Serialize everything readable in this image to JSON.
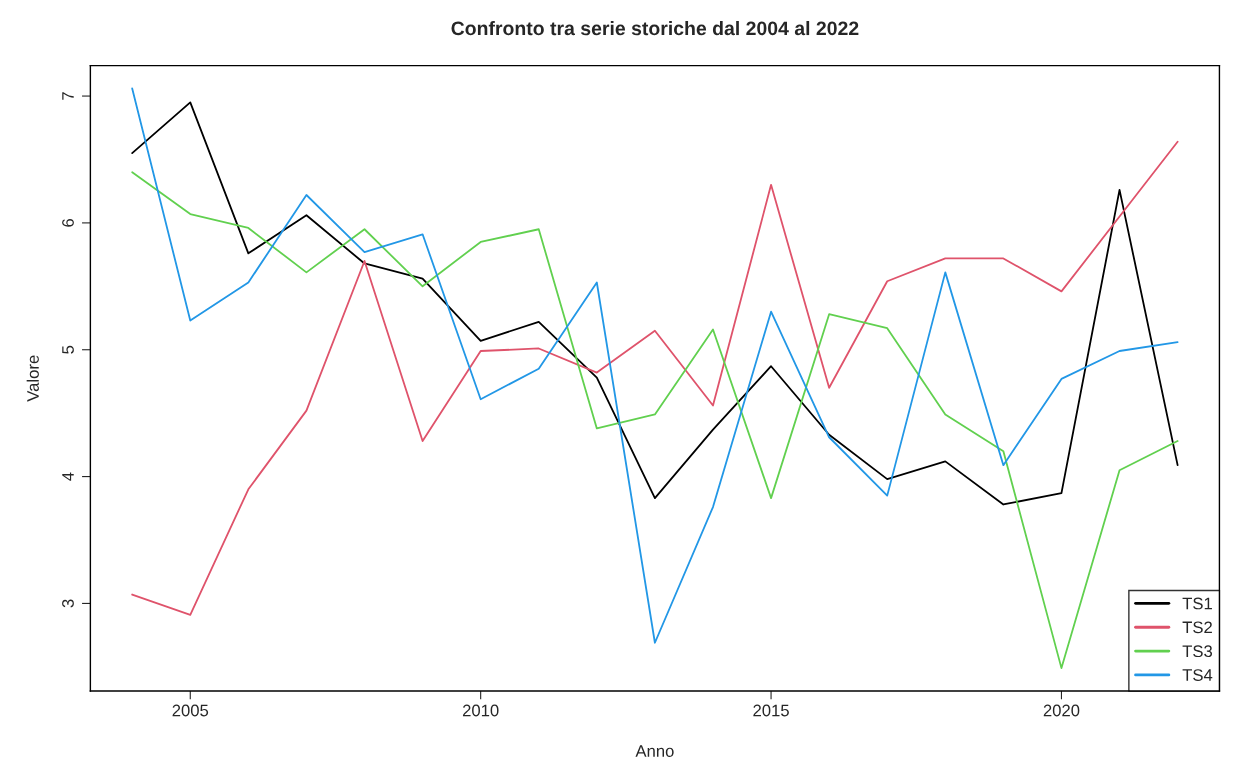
{
  "chart_data": {
    "type": "line",
    "title": "Confronto tra serie storiche dal 2004 al 2022",
    "xlabel": "Anno",
    "ylabel": "Valore",
    "x": [
      2004,
      2005,
      2006,
      2007,
      2008,
      2009,
      2010,
      2011,
      2012,
      2013,
      2014,
      2015,
      2016,
      2017,
      2018,
      2019,
      2020,
      2021,
      2022
    ],
    "series": [
      {
        "name": "TS1",
        "color": "#000000",
        "values": [
          6.55,
          6.95,
          5.76,
          6.06,
          5.68,
          5.56,
          5.07,
          5.22,
          4.78,
          3.83,
          4.37,
          4.87,
          4.33,
          3.98,
          4.12,
          3.78,
          3.87,
          6.26,
          4.09
        ]
      },
      {
        "name": "TS2",
        "color": "#df536b",
        "values": [
          3.07,
          2.91,
          3.9,
          4.52,
          5.7,
          4.28,
          4.99,
          5.01,
          4.82,
          5.15,
          4.56,
          6.3,
          4.7,
          5.54,
          5.72,
          5.72,
          5.46,
          6.05,
          6.64
        ]
      },
      {
        "name": "TS3",
        "color": "#61d04f",
        "values": [
          6.4,
          6.07,
          5.96,
          5.61,
          5.95,
          5.5,
          5.85,
          5.95,
          4.38,
          4.49,
          5.16,
          3.83,
          5.28,
          5.17,
          4.49,
          4.2,
          2.49,
          4.05,
          4.28
        ]
      },
      {
        "name": "TS4",
        "color": "#2297e6",
        "values": [
          7.06,
          5.23,
          5.53,
          6.22,
          5.77,
          5.91,
          4.61,
          4.85,
          5.53,
          2.69,
          3.76,
          5.3,
          4.31,
          3.85,
          5.61,
          4.09,
          4.77,
          4.99,
          5.06
        ]
      }
    ],
    "xlim": [
      2003.28,
      2022.72
    ],
    "ylim": [
      2.31,
      7.24
    ],
    "xticks": [
      2005,
      2010,
      2015,
      2020
    ],
    "yticks": [
      3,
      4,
      5,
      6,
      7
    ],
    "grid": false,
    "legend": "bottom right",
    "marker": "none",
    "line_style": "solid"
  }
}
